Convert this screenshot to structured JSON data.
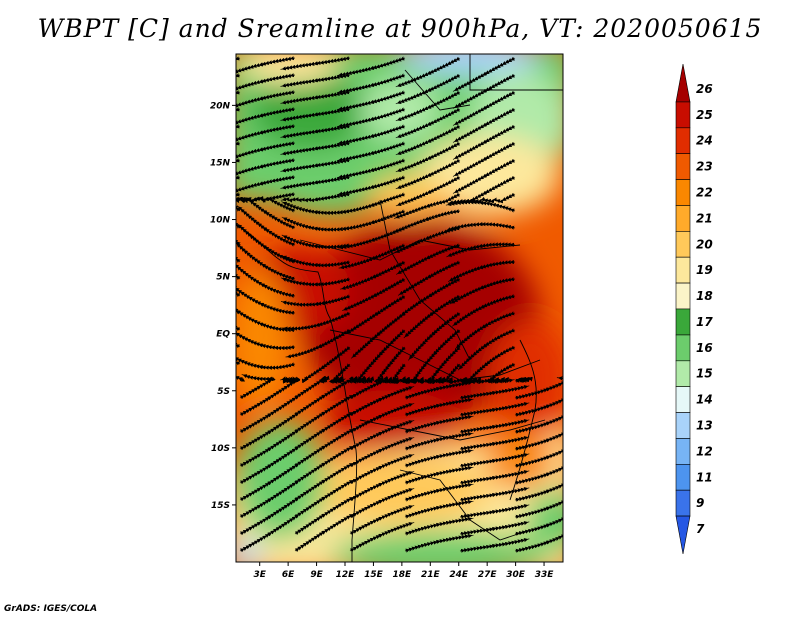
{
  "title": "WBPT [C] and Sreamline at 900hPa, VT: 2020050615",
  "credit": "GrADS: IGES/COLA",
  "map": {
    "lat_labels": [
      "20N",
      "15N",
      "10N",
      "5N",
      "EQ",
      "5S",
      "10S",
      "15S"
    ],
    "lon_labels": [
      "3E",
      "6E",
      "9E",
      "12E",
      "15E",
      "18E",
      "21E",
      "24E",
      "27E",
      "30E",
      "33E"
    ],
    "lat_values": [
      20,
      15,
      10,
      5,
      0,
      -5,
      -10,
      -15
    ],
    "lon_values": [
      3,
      6,
      9,
      12,
      15,
      18,
      21,
      24,
      27,
      30,
      33
    ],
    "lat_range": [
      -20,
      24.5
    ],
    "lon_range": [
      0.5,
      35
    ]
  },
  "colorbar": {
    "labels": [
      "26",
      "25",
      "24",
      "23",
      "22",
      "21",
      "20",
      "19",
      "18",
      "17",
      "16",
      "15",
      "14",
      "13",
      "12",
      "11",
      "9",
      "7"
    ],
    "colors": [
      "#a50000",
      "#c80d00",
      "#e12d00",
      "#f05a00",
      "#fa8700",
      "#ffaa2a",
      "#ffc95a",
      "#fde89c",
      "#fbf4c8",
      "#3aa83a",
      "#6ccd6c",
      "#b1eaa9",
      "#e6f8f8",
      "#a9d3fa",
      "#77b4f5",
      "#4d94ef",
      "#3a73ea",
      "#2557e4"
    ]
  }
}
